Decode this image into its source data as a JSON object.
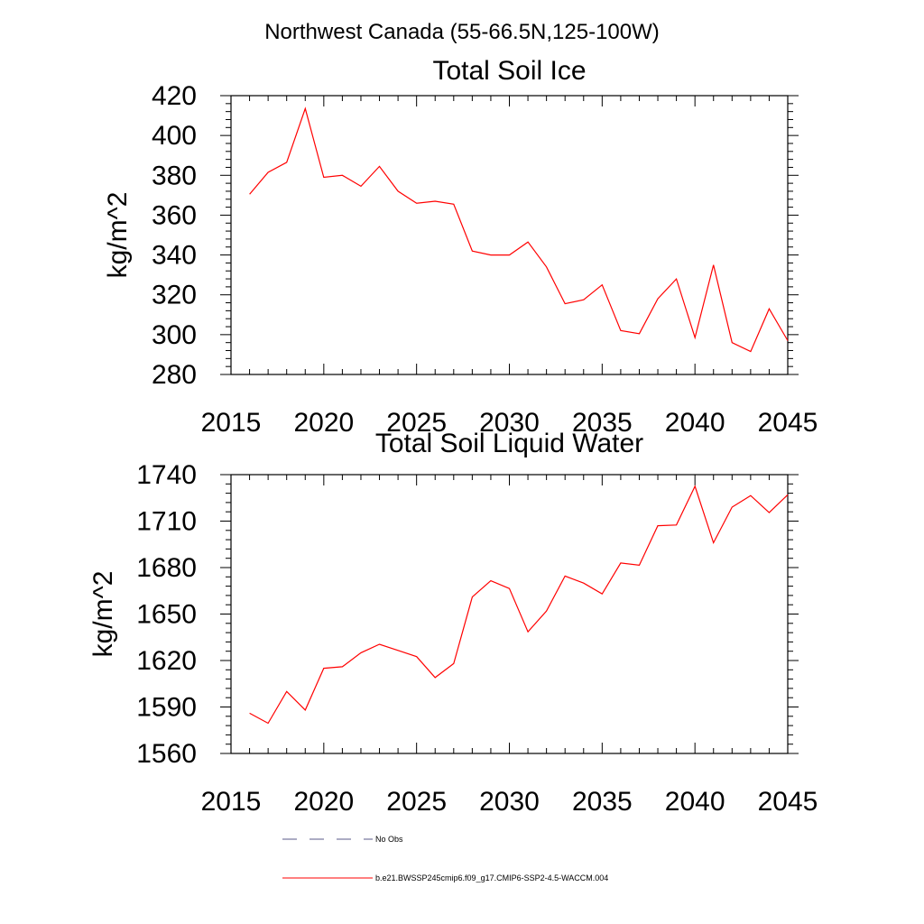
{
  "suptitle": "Northwest Canada (55-66.5N,125-100W)",
  "chart_data": [
    {
      "type": "line",
      "title": "Total Soil Ice",
      "xlabel": "",
      "ylabel": "kg/m^2",
      "xlim": [
        2015,
        2045
      ],
      "ylim": [
        280,
        420
      ],
      "xticks": [
        2015,
        2020,
        2025,
        2030,
        2035,
        2040,
        2045
      ],
      "yticks": [
        280,
        300,
        320,
        340,
        360,
        380,
        400,
        420
      ],
      "x": [
        2016,
        2017,
        2018,
        2019,
        2020,
        2021,
        2022,
        2023,
        2024,
        2025,
        2026,
        2027,
        2028,
        2029,
        2030,
        2031,
        2032,
        2033,
        2034,
        2035,
        2036,
        2037,
        2038,
        2039,
        2040,
        2041,
        2042,
        2043,
        2044,
        2045
      ],
      "series": [
        {
          "name": "b.e21.BWSSP245cmip6.f09_g17.CMIP6-SSP2-4.5-WACCM.004",
          "color": "#ff0000",
          "values": [
            370.5,
            381.5,
            386.5,
            413.5,
            379,
            380,
            374.5,
            384.5,
            372,
            366,
            367,
            365.5,
            342,
            340,
            340,
            346.5,
            334,
            315.5,
            317.5,
            325,
            302,
            300.5,
            318,
            328,
            298.5,
            335,
            296,
            291.5,
            313,
            297
          ]
        }
      ],
      "grid": false
    },
    {
      "type": "line",
      "title": "Total Soil Liquid Water",
      "xlabel": "",
      "ylabel": "kg/m^2",
      "xlim": [
        2015,
        2045
      ],
      "ylim": [
        1560,
        1740
      ],
      "xticks": [
        2015,
        2020,
        2025,
        2030,
        2035,
        2040,
        2045
      ],
      "yticks": [
        1560,
        1590,
        1620,
        1650,
        1680,
        1710,
        1740
      ],
      "x": [
        2016,
        2017,
        2018,
        2019,
        2020,
        2021,
        2022,
        2023,
        2024,
        2025,
        2026,
        2027,
        2028,
        2029,
        2030,
        2031,
        2032,
        2033,
        2034,
        2035,
        2036,
        2037,
        2038,
        2039,
        2040,
        2041,
        2042,
        2043,
        2044,
        2045
      ],
      "series": [
        {
          "name": "b.e21.BWSSP245cmip6.f09_g17.CMIP6-SSP2-4.5-WACCM.004",
          "color": "#ff0000",
          "values": [
            1586,
            1579.5,
            1600,
            1588,
            1615,
            1616,
            1625,
            1630.5,
            1626.5,
            1622.5,
            1609,
            1618,
            1661,
            1671.5,
            1666.5,
            1638.5,
            1652,
            1674.5,
            1670,
            1663,
            1683,
            1681.5,
            1707,
            1707.5,
            1732.5,
            1696,
            1719,
            1726.5,
            1715.5,
            1727
          ]
        }
      ],
      "grid": false
    }
  ],
  "legend": [
    {
      "label": "No Obs",
      "style": "dashed",
      "color": "#5a5a8a"
    },
    {
      "label": "b.e21.BWSSP245cmip6.f09_g17.CMIP6-SSP2-4.5-WACCM.004",
      "style": "solid",
      "color": "#ff0000"
    }
  ]
}
